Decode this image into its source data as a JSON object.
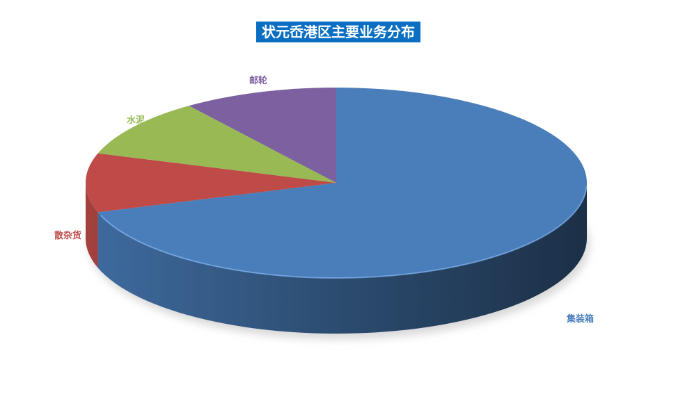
{
  "chart_data": {
    "type": "pie",
    "style": "3d",
    "title": "状元岙港区主要业务分布",
    "categories": [
      "集装箱",
      "散杂货",
      "水泥",
      "邮轮"
    ],
    "values": [
      70,
      10,
      10,
      10
    ],
    "colors": [
      "#4a7ebb",
      "#be4b48",
      "#98b954",
      "#7d60a0"
    ],
    "legend": "none",
    "data_labels": "category name"
  }
}
